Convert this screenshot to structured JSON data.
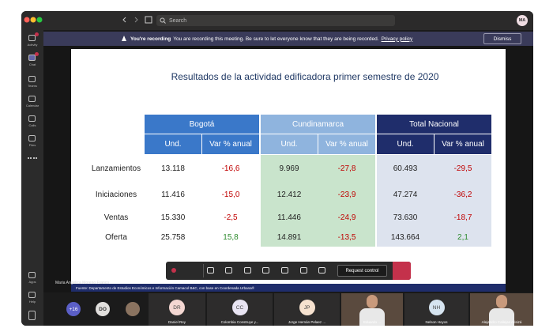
{
  "app": {
    "search_placeholder": "Search",
    "avatar": "MA"
  },
  "rail": [
    "Activity",
    "Chat",
    "Teams",
    "Calendar",
    "Calls",
    "Files",
    "Apps",
    "Help"
  ],
  "banner": {
    "title": "You're recording",
    "message": "You are recording this meeting. Be sure to let everyone know that they are being recorded.",
    "link": "Privacy policy",
    "button": "Dismiss"
  },
  "slide": {
    "title": "Resultados de la actividad edificadora primer semestre de 2020",
    "table": {
      "groups": [
        {
          "name": "Bogotá",
          "columns": [
            "Und.",
            "Var % anual"
          ]
        },
        {
          "name": "Cundinamarca",
          "columns": [
            "Und.",
            "Var % anual"
          ]
        },
        {
          "name": "Total Nacional",
          "columns": [
            "Und.",
            "Var % anual"
          ]
        }
      ],
      "rows": [
        {
          "label": "Lanzamientos",
          "cells": [
            "13.118",
            "-16,6",
            "9.969",
            "-27,8",
            "60.493",
            "-29,5"
          ]
        },
        {
          "label": "Iniciaciones",
          "cells": [
            "11.416",
            "-15,0",
            "12.412",
            "-23,9",
            "47.274",
            "-36,2"
          ]
        },
        {
          "label": "Ventas",
          "cells": [
            "15.330",
            "-2,5",
            "11.446",
            "-24,9",
            "73.630",
            "-18,7"
          ]
        },
        {
          "label": "Oferta",
          "cells": [
            "25.758",
            "15,8",
            "14.891",
            "-13,5",
            "143.664",
            "2,1"
          ]
        }
      ]
    },
    "source": "Fuente: Departamento de Estudios Económicos e Información Camacol B&C, con base en Coordenada Urbana®"
  },
  "presenter": "Maria Angelica Moreno Franco",
  "controls": {
    "request": "Request control"
  },
  "participants": {
    "overflow": "+16",
    "avatars": [
      "DO"
    ],
    "tiles": [
      {
        "initials": "DR",
        "name": "Daniel Rey"
      },
      {
        "initials": "CC",
        "name": "Colombia Construye y..."
      },
      {
        "initials": "JP",
        "name": "Jorge Hernán Pelaez ..."
      },
      {
        "initials": null,
        "name": "Eduardo ..."
      },
      {
        "initials": "NH",
        "name": "Nelson Hoyos"
      },
      {
        "initials": null,
        "name": "Alejandro Callejas Arisizá"
      }
    ]
  }
}
